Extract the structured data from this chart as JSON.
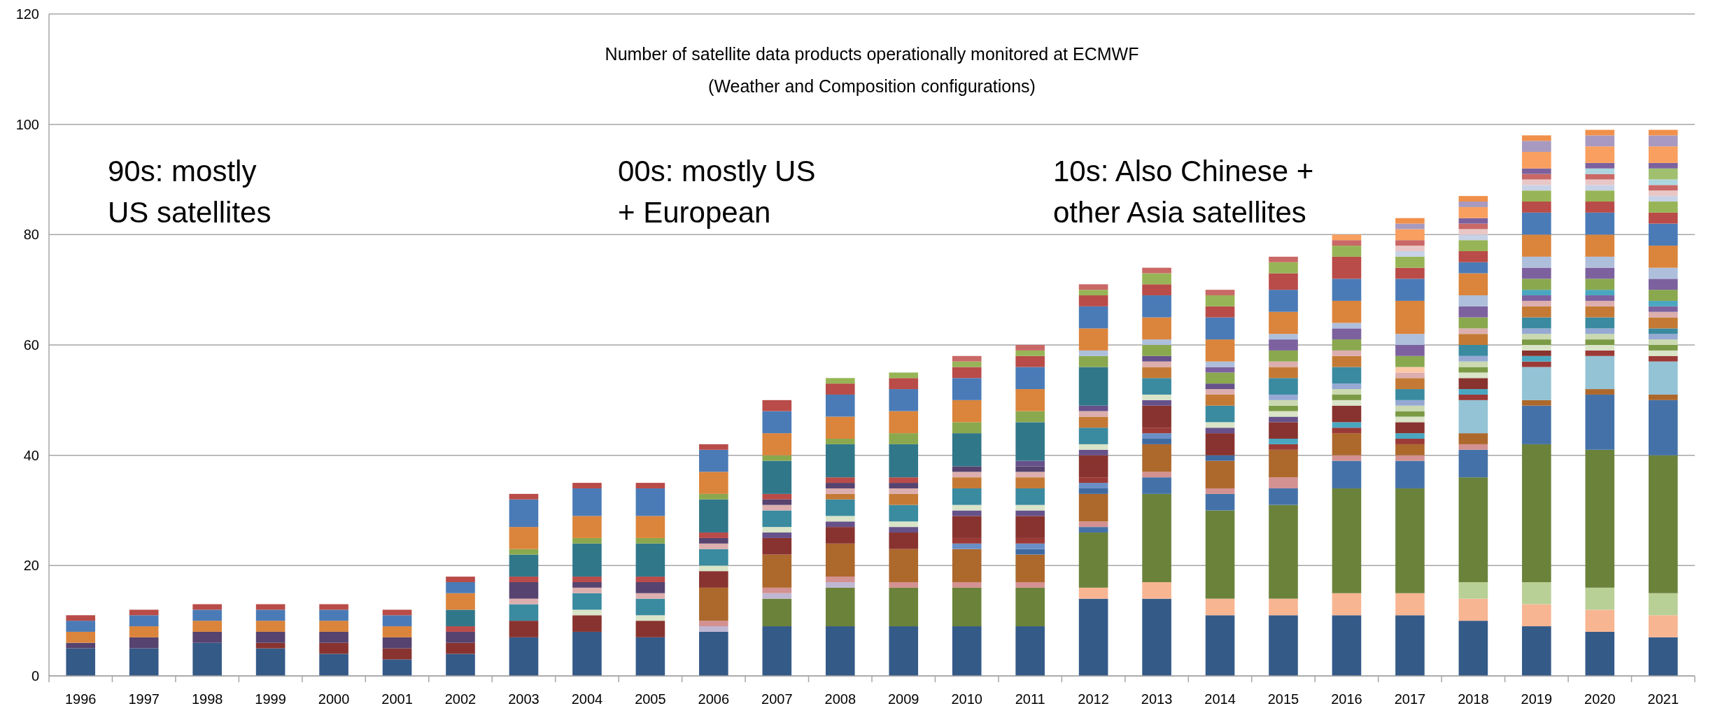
{
  "chart_data": {
    "type": "bar",
    "stacked": true,
    "title": "Number of satellite data products operationally monitored at ECMWF",
    "subtitle": "(Weather and Composition configurations)",
    "annotations": [
      "90s: mostly\nUS satellites",
      "00s: mostly US\n+ European",
      "10s: Also Chinese +\nother Asia satellites"
    ],
    "categories": [
      "1996",
      "1997",
      "1998",
      "1999",
      "2000",
      "2001",
      "2002",
      "2003",
      "2004",
      "2005",
      "2006",
      "2007",
      "2008",
      "2009",
      "2010",
      "2011",
      "2012",
      "2013",
      "2014",
      "2015",
      "2016",
      "2017",
      "2018",
      "2019",
      "2020",
      "2021"
    ],
    "ylim": [
      0,
      120
    ],
    "yticks": [
      0,
      20,
      40,
      60,
      80,
      100,
      120
    ],
    "grid": "y",
    "series": [
      {
        "values": [
          5,
          5,
          6,
          5,
          4,
          3,
          4,
          7,
          8,
          7,
          8,
          9,
          9,
          9,
          9,
          9,
          14,
          14,
          11,
          11,
          11,
          11,
          10,
          9,
          8,
          7
        ],
        "colors": [
          "#345a88",
          "#345a88",
          "#345a88",
          "#345a88",
          "#345a88",
          "#345a88",
          "#345a88",
          "#345a88",
          "#345a88",
          "#345a88",
          "#345a88",
          "#345a88",
          "#345a88",
          "#345a88",
          "#345a88",
          "#345a88",
          "#345a88",
          "#345a88",
          "#345a88",
          "#345a88",
          "#345a88",
          "#345a88",
          "#345a88",
          "#345a88",
          "#345a88",
          "#345a88"
        ]
      },
      {
        "values": [
          1,
          2,
          2,
          1,
          2,
          2,
          2,
          3,
          3,
          3,
          1,
          5,
          7,
          7,
          7,
          7,
          2,
          3,
          3,
          3,
          4,
          4,
          4,
          4,
          4,
          4
        ],
        "colors": [
          "#56436f",
          "#56436f",
          "#56436f",
          "#88332f",
          "#88332f",
          "#88332f",
          "#88332f",
          "#88332f",
          "#88332f",
          "#88332f",
          "#bfb6d2",
          "#6b823b",
          "#6b823b",
          "#6b823b",
          "#6b823b",
          "#6b823b",
          "#f8b592",
          "#f8b592",
          "#f8b592",
          "#f8b592",
          "#f8b592",
          "#f8b592",
          "#f8b592",
          "#f8b592",
          "#f8b592",
          "#f8b592"
        ]
      },
      {
        "values": [
          2,
          2,
          2,
          2,
          2,
          2,
          2,
          3,
          1,
          1,
          1,
          1,
          1,
          1,
          1,
          1,
          10,
          16,
          16,
          17,
          19,
          19,
          3,
          4,
          4,
          4
        ],
        "colors": [
          "#db843b",
          "#db843b",
          "#db843b",
          "#56436f",
          "#56436f",
          "#56436f",
          "#56436f",
          "#3a8aa0",
          "#d9e4c8",
          "#d9e4c8",
          "#d39191",
          "#bfb6d2",
          "#bfb6d2",
          "#d39191",
          "#d39191",
          "#d39191",
          "#6b823b",
          "#6b823b",
          "#6b823b",
          "#6b823b",
          "#6b823b",
          "#6b823b",
          "#b8cf96",
          "#b8cf96",
          "#b8cf96",
          "#b8cf96"
        ]
      },
      {
        "values": [
          2,
          2,
          2,
          2,
          2,
          2,
          1,
          1,
          3,
          3,
          6,
          1,
          1,
          6,
          6,
          5,
          1,
          3,
          3,
          3,
          5,
          5,
          19,
          25,
          25,
          25
        ],
        "colors": [
          "#4a7bb7",
          "#4a7bb7",
          "#4a7bb7",
          "#db843b",
          "#db843b",
          "#db843b",
          "#b94b48",
          "#dcaeae",
          "#3a8aa0",
          "#3a8aa0",
          "#ad682c",
          "#d39191",
          "#d39191",
          "#ad682c",
          "#ad682c",
          "#ad682c",
          "#4472a8",
          "#4472a8",
          "#4472a8",
          "#4472a8",
          "#4472a8",
          "#4472a8",
          "#6b823b",
          "#6b823b",
          "#6b823b",
          "#6b823b"
        ]
      },
      {
        "values": [
          1,
          1,
          1,
          2,
          2,
          2,
          3,
          3,
          1,
          1,
          3,
          6,
          6,
          3,
          1,
          1,
          1,
          1,
          1,
          2,
          1,
          1,
          5,
          7,
          10,
          10
        ],
        "colors": [
          "#b94b48",
          "#b94b48",
          "#b94b48",
          "#4a7bb7",
          "#4a7bb7",
          "#4a7bb7",
          "#31778a",
          "#56436f",
          "#dcaeae",
          "#dcaeae",
          "#88332f",
          "#ad682c",
          "#ad682c",
          "#88332f",
          "#6a8fc7",
          "#3f6aa0",
          "#d39191",
          "#d39191",
          "#d39191",
          "#d39191",
          "#d39191",
          "#d39191",
          "#4472a8",
          "#4472a8",
          "#4472a8",
          "#4472a8"
        ]
      },
      {
        "values": [
          null,
          null,
          null,
          1,
          1,
          1,
          3,
          1,
          1,
          2,
          1,
          3,
          3,
          1,
          1,
          1,
          5,
          5,
          5,
          5,
          4,
          2,
          1,
          1,
          1,
          1
        ],
        "colors": [
          null,
          null,
          null,
          "#b94b48",
          "#b94b48",
          "#b94b48",
          "#db843b",
          "#b94b48",
          "#56436f",
          "#56436f",
          "#d9e4c8",
          "#88332f",
          "#88332f",
          "#66518a",
          "#9b3a37",
          "#6a8fc7",
          "#ad682c",
          "#ad682c",
          "#ad682c",
          "#ad682c",
          "#ad682c",
          "#ad682c",
          "#d39191",
          "#ad682c",
          "#ad682c",
          "#ad682c"
        ]
      },
      {
        "values": [
          null,
          null,
          null,
          null,
          null,
          null,
          2,
          4,
          1,
          1,
          3,
          1,
          1,
          1,
          4,
          1,
          1,
          1,
          1,
          1,
          1,
          1,
          2,
          6,
          6,
          6
        ],
        "colors": [
          null,
          null,
          null,
          null,
          null,
          null,
          "#4a7bb7",
          "#31778a",
          "#b94b48",
          "#b94b48",
          "#3a8aa0",
          "#66518a",
          "#66518a",
          "#d9e4c8",
          "#88332f",
          "#9b3a37",
          "#3f6aa0",
          "#3f6aa0",
          "#3f6aa0",
          "#9b3a37",
          "#9b3a37",
          "#9b3a37",
          "#ad682c",
          "#93c3d5",
          "#93c3d5",
          "#93c3d5"
        ]
      },
      {
        "values": [
          null,
          null,
          null,
          null,
          null,
          null,
          1,
          1,
          6,
          6,
          1,
          1,
          1,
          3,
          1,
          4,
          1,
          1,
          4,
          1,
          1,
          1,
          6,
          1,
          1,
          1
        ],
        "colors": [
          null,
          null,
          null,
          null,
          null,
          null,
          "#b94b48",
          "#8aa84e",
          "#31778a",
          "#31778a",
          "#dcaeae",
          "#d9e4c8",
          "#d9e4c8",
          "#3a8aa0",
          "#66518a",
          "#88332f",
          "#6a8fc7",
          "#6a8fc7",
          "#88332f",
          "#4aa7c0",
          "#4aa7c0",
          "#4aa7c0",
          "#93c3d5",
          "#9b3a37",
          "#9b3a37",
          "#9b3a37"
        ]
      },
      {
        "values": [
          null,
          null,
          null,
          null,
          null,
          null,
          null,
          4,
          1,
          1,
          1,
          3,
          3,
          2,
          1,
          1,
          1,
          1,
          1,
          3,
          3,
          2,
          1,
          1,
          1,
          1
        ],
        "colors": [
          null,
          null,
          null,
          null,
          null,
          null,
          null,
          "#db843b",
          "#8aa84e",
          "#8aa84e",
          "#56436f",
          "#3a8aa0",
          "#3a8aa0",
          "#c47a35",
          "#d9e4c8",
          "#66518a",
          "#9b3a37",
          "#9b3a37",
          "#66518a",
          "#88332f",
          "#88332f",
          "#88332f",
          "#9b3a37",
          "#4aa7c0",
          "#d9e4c8",
          "#d9e4c8"
        ]
      },
      {
        "values": [
          null,
          null,
          null,
          null,
          null,
          null,
          null,
          5,
          4,
          4,
          1,
          1,
          1,
          1,
          3,
          1,
          4,
          4,
          1,
          1,
          1,
          1,
          1,
          1,
          1,
          1
        ],
        "colors": [
          null,
          null,
          null,
          null,
          null,
          null,
          null,
          "#4a7bb7",
          "#db843b",
          "#db843b",
          "#b94b48",
          "#dcaeae",
          "#c47a35",
          "#dcaeae",
          "#3a8aa0",
          "#d9e4c8",
          "#88332f",
          "#88332f",
          "#d9e4c8",
          "#66518a",
          "#d9e4c8",
          "#d9e4c8",
          "#4aa7c0",
          "#88332f",
          "#7b9a45",
          "#7b9a45"
        ]
      },
      {
        "values": [
          null,
          null,
          null,
          null,
          null,
          null,
          null,
          1,
          5,
          5,
          6,
          1,
          1,
          1,
          2,
          3,
          1,
          1,
          3,
          1,
          1,
          1,
          2,
          1,
          1,
          1
        ],
        "colors": [
          null,
          null,
          null,
          null,
          null,
          null,
          null,
          "#b94b48",
          "#4a7bb7",
          "#4a7bb7",
          "#31778a",
          "#56436f",
          "#dcaeae",
          "#56436f",
          "#c47a35",
          "#3a8aa0",
          "#66518a",
          "#66518a",
          "#3a8aa0",
          "#d9e4c8",
          "#7b9a45",
          "#7b9a45",
          "#88332f",
          "#d9e4c8",
          "#cad9b0",
          "#cad9b0"
        ]
      },
      {
        "values": [
          null,
          null,
          null,
          null,
          null,
          null,
          null,
          null,
          1,
          1,
          1,
          1,
          1,
          1,
          1,
          2,
          1,
          1,
          2,
          1,
          1,
          1,
          1,
          1,
          1,
          1
        ],
        "colors": [
          null,
          null,
          null,
          null,
          null,
          null,
          null,
          null,
          "#b94b48",
          "#b94b48",
          "#8aa84e",
          "#b94b48",
          "#56436f",
          "#b94b48",
          "#dcaeae",
          "#c47a35",
          "#d9e4c8",
          "#d9e4c8",
          "#c47a35",
          "#7b9a45",
          "#cad9b0",
          "#cad9b0",
          "#d9e4c8",
          "#7b9a45",
          "#95a9d3",
          "#95a9d3"
        ]
      },
      {
        "values": [
          null,
          null,
          null,
          null,
          null,
          null,
          null,
          null,
          null,
          null,
          4,
          6,
          1,
          6,
          1,
          1,
          3,
          3,
          1,
          1,
          1,
          1,
          1,
          1,
          2,
          1
        ],
        "colors": [
          null,
          null,
          null,
          null,
          null,
          null,
          null,
          null,
          null,
          null,
          "#db843b",
          "#31778a",
          "#b94b48",
          "#31778a",
          "#56436f",
          "#dcaeae",
          "#3a8aa0",
          "#3a8aa0",
          "#dcaeae",
          "#cad9b0",
          "#95a9d3",
          "#95a9d3",
          "#7b9a45",
          "#cad9b0",
          "#3a8aa0",
          "#3a8aa0"
        ]
      },
      {
        "values": [
          null,
          null,
          null,
          null,
          null,
          null,
          null,
          null,
          null,
          null,
          4,
          1,
          6,
          2,
          6,
          1,
          2,
          2,
          1,
          1,
          3,
          2,
          1,
          1,
          2,
          2
        ],
        "colors": [
          null,
          null,
          null,
          null,
          null,
          null,
          null,
          null,
          null,
          null,
          "#4a7bb7",
          "#8aa84e",
          "#31778a",
          "#8aa84e",
          "#31778a",
          "#56436f",
          "#c47a35",
          "#c47a35",
          "#66518a",
          "#95a9d3",
          "#3a8aa0",
          "#3a8aa0",
          "#cad9b0",
          "#95a9d3",
          "#c47a35",
          "#c47a35"
        ]
      },
      {
        "values": [
          null,
          null,
          null,
          null,
          null,
          null,
          null,
          null,
          null,
          null,
          1,
          4,
          1,
          4,
          2,
          1,
          1,
          1,
          2,
          3,
          2,
          2,
          1,
          2,
          1,
          1
        ],
        "colors": [
          null,
          null,
          null,
          null,
          null,
          null,
          null,
          null,
          null,
          null,
          "#b94b48",
          "#db843b",
          "#8aa84e",
          "#db843b",
          "#8aa84e",
          "#66518a",
          "#dcaeae",
          "#dcaeae",
          "#8aa84e",
          "#3a8aa0",
          "#c47a35",
          "#c47a35",
          "#95a9d3",
          "#3a8aa0",
          "#dcaeae",
          "#dcaeae"
        ]
      },
      {
        "values": [
          null,
          null,
          null,
          null,
          null,
          null,
          null,
          null,
          null,
          null,
          null,
          4,
          4,
          4,
          4,
          7,
          1,
          1,
          1,
          2,
          1,
          1,
          2,
          2,
          1,
          1
        ],
        "colors": [
          null,
          null,
          null,
          null,
          null,
          null,
          null,
          null,
          null,
          null,
          null,
          "#4a7bb7",
          "#db843b",
          "#4a7bb7",
          "#db843b",
          "#31778a",
          "#66518a",
          "#66518a",
          "#7c619e",
          "#c47a35",
          "#dcaeae",
          "#dcaeae",
          "#3a8aa0",
          "#c47a35",
          "#7c619e",
          "#7c619e"
        ]
      },
      {
        "values": [
          null,
          null,
          null,
          null,
          null,
          null,
          null,
          null,
          null,
          null,
          null,
          2,
          4,
          2,
          4,
          2,
          7,
          2,
          1,
          1,
          2,
          1,
          2,
          1,
          1,
          1
        ],
        "colors": [
          null,
          null,
          null,
          null,
          null,
          null,
          null,
          null,
          null,
          null,
          null,
          "#b94b48",
          "#4a7bb7",
          "#b94b48",
          "#4a7bb7",
          "#8aa84e",
          "#31778a",
          "#8aa84e",
          "#aebfdc",
          "#dcaeae",
          "#8aa84e",
          "#fcc8a8",
          "#c47a35",
          "#dcaeae",
          "#4aa7c0",
          "#4aa7c0"
        ]
      },
      {
        "values": [
          null,
          null,
          null,
          null,
          null,
          null,
          null,
          null,
          null,
          null,
          null,
          null,
          2,
          1,
          2,
          4,
          2,
          1,
          4,
          2,
          2,
          2,
          1,
          1,
          2,
          2
        ],
        "colors": [
          null,
          null,
          null,
          null,
          null,
          null,
          null,
          null,
          null,
          null,
          null,
          null,
          "#b94b48",
          "#97b556",
          "#b94b48",
          "#db843b",
          "#8aa84e",
          "#aebfdc",
          "#db843b",
          "#8aa84e",
          "#7c619e",
          "#8aa84e",
          "#dcaeae",
          "#7c619e",
          "#8aa84e",
          "#8aa84e"
        ]
      },
      {
        "values": [
          null,
          null,
          null,
          null,
          null,
          null,
          null,
          null,
          null,
          null,
          null,
          null,
          1,
          null,
          1,
          4,
          1,
          4,
          4,
          2,
          1,
          2,
          2,
          1,
          2,
          2
        ],
        "colors": [
          null,
          null,
          null,
          null,
          null,
          null,
          null,
          null,
          null,
          null,
          null,
          null,
          "#97b556",
          null,
          "#97b556",
          "#4a7bb7",
          "#aebfdc",
          "#db843b",
          "#4a7bb7",
          "#7c619e",
          "#aebfdc",
          "#7c619e",
          "#8aa84e",
          "#4aa7c0",
          "#7c619e",
          "#7c619e"
        ]
      },
      {
        "values": [
          null,
          null,
          null,
          null,
          null,
          null,
          null,
          null,
          null,
          null,
          null,
          null,
          null,
          null,
          1,
          2,
          4,
          4,
          2,
          1,
          4,
          2,
          2,
          2,
          2,
          2
        ],
        "colors": [
          null,
          null,
          null,
          null,
          null,
          null,
          null,
          null,
          null,
          null,
          null,
          null,
          null,
          null,
          "#c96866",
          "#b94b48",
          "#db843b",
          "#4a7bb7",
          "#b94b48",
          "#aebfdc",
          "#db843b",
          "#aebfdc",
          "#7c619e",
          "#8aa84e",
          "#aebfdc",
          "#aebfdc"
        ]
      },
      {
        "values": [
          null,
          null,
          null,
          null,
          null,
          null,
          null,
          null,
          null,
          null,
          null,
          null,
          null,
          null,
          null,
          1,
          4,
          2,
          2,
          4,
          4,
          6,
          2,
          2,
          4,
          4
        ],
        "colors": [
          null,
          null,
          null,
          null,
          null,
          null,
          null,
          null,
          null,
          null,
          null,
          null,
          null,
          null,
          null,
          "#97b556",
          "#4a7bb7",
          "#b94b48",
          "#97b556",
          "#db843b",
          "#4a7bb7",
          "#db843b",
          "#aebfdc",
          "#7c619e",
          "#db843b",
          "#db843b"
        ]
      },
      {
        "values": [
          null,
          null,
          null,
          null,
          null,
          null,
          null,
          null,
          null,
          null,
          null,
          null,
          null,
          null,
          null,
          1,
          2,
          2,
          1,
          4,
          4,
          4,
          4,
          2,
          4,
          4
        ],
        "colors": [
          null,
          null,
          null,
          null,
          null,
          null,
          null,
          null,
          null,
          null,
          null,
          null,
          null,
          null,
          null,
          "#c96866",
          "#b94b48",
          "#97b556",
          "#c96866",
          "#4a7bb7",
          "#b94b48",
          "#4a7bb7",
          "#db843b",
          "#aebfdc",
          "#4a7bb7",
          "#4a7bb7"
        ]
      },
      {
        "values": [
          null,
          null,
          null,
          null,
          null,
          null,
          null,
          null,
          null,
          null,
          null,
          null,
          null,
          null,
          null,
          null,
          1,
          1,
          null,
          3,
          2,
          2,
          2,
          4,
          2,
          2
        ],
        "colors": [
          null,
          null,
          null,
          null,
          null,
          null,
          null,
          null,
          null,
          null,
          null,
          null,
          null,
          null,
          null,
          null,
          "#97b556",
          "#c96866",
          null,
          "#b94b48",
          "#97b556",
          "#b94b48",
          "#4a7bb7",
          "#db843b",
          "#b94b48",
          "#b94b48"
        ]
      },
      {
        "values": [
          null,
          null,
          null,
          null,
          null,
          null,
          null,
          null,
          null,
          null,
          null,
          null,
          null,
          null,
          null,
          null,
          1,
          null,
          null,
          2,
          1,
          2,
          2,
          4,
          2,
          2
        ],
        "colors": [
          null,
          null,
          null,
          null,
          null,
          null,
          null,
          null,
          null,
          null,
          null,
          null,
          null,
          null,
          null,
          null,
          "#c96866",
          null,
          null,
          "#97b556",
          "#c96866",
          "#97b556",
          "#b94b48",
          "#4a7bb7",
          "#97b556",
          "#97b556"
        ]
      },
      {
        "values": [
          null,
          null,
          null,
          null,
          null,
          null,
          null,
          null,
          null,
          null,
          null,
          null,
          null,
          null,
          null,
          null,
          null,
          null,
          null,
          1,
          1,
          1,
          2,
          2,
          1,
          1
        ],
        "colors": [
          null,
          null,
          null,
          null,
          null,
          null,
          null,
          null,
          null,
          null,
          null,
          null,
          null,
          null,
          null,
          null,
          null,
          null,
          null,
          "#c96866",
          "#f99f5f",
          "#c7d2e6",
          "#97b556",
          "#b94b48",
          "#c7d2e6",
          "#c7d2e6"
        ]
      },
      {
        "values": [
          null,
          null,
          null,
          null,
          null,
          null,
          null,
          null,
          null,
          null,
          null,
          null,
          null,
          null,
          null,
          null,
          null,
          null,
          null,
          null,
          null,
          1,
          1,
          2,
          1,
          1
        ],
        "colors": [
          null,
          null,
          null,
          null,
          null,
          null,
          null,
          null,
          null,
          null,
          null,
          null,
          null,
          null,
          null,
          null,
          null,
          null,
          null,
          null,
          null,
          "#e9c7c7",
          "#c7d2e6",
          "#97b556",
          "#e9c7c7",
          "#e9c7c7"
        ]
      },
      {
        "values": [
          null,
          null,
          null,
          null,
          null,
          null,
          null,
          null,
          null,
          null,
          null,
          null,
          null,
          null,
          null,
          null,
          null,
          null,
          null,
          null,
          null,
          1,
          1,
          1,
          1,
          1
        ],
        "colors": [
          null,
          null,
          null,
          null,
          null,
          null,
          null,
          null,
          null,
          null,
          null,
          null,
          null,
          null,
          null,
          null,
          null,
          null,
          null,
          null,
          null,
          "#c96866",
          "#e9c7c7",
          "#c7d2e6",
          "#c96866",
          "#c96866"
        ]
      },
      {
        "values": [
          null,
          null,
          null,
          null,
          null,
          null,
          null,
          null,
          null,
          null,
          null,
          null,
          null,
          null,
          null,
          null,
          null,
          null,
          null,
          null,
          null,
          2,
          1,
          1,
          1,
          1
        ],
        "colors": [
          null,
          null,
          null,
          null,
          null,
          null,
          null,
          null,
          null,
          null,
          null,
          null,
          null,
          null,
          null,
          null,
          null,
          null,
          null,
          null,
          null,
          "#f99f5f",
          "#c96866",
          "#e9c7c7",
          "#add7e0",
          "#add7e0"
        ]
      },
      {
        "values": [
          null,
          null,
          null,
          null,
          null,
          null,
          null,
          null,
          null,
          null,
          null,
          null,
          null,
          null,
          null,
          null,
          null,
          null,
          null,
          null,
          null,
          1,
          1,
          1,
          1,
          2
        ],
        "colors": [
          null,
          null,
          null,
          null,
          null,
          null,
          null,
          null,
          null,
          null,
          null,
          null,
          null,
          null,
          null,
          null,
          null,
          null,
          null,
          null,
          null,
          "#a899c0",
          "#7c619e",
          "#c96866",
          "#7c619e",
          "#a0c070"
        ]
      },
      {
        "values": [
          null,
          null,
          null,
          null,
          null,
          null,
          null,
          null,
          null,
          null,
          null,
          null,
          null,
          null,
          null,
          null,
          null,
          null,
          null,
          null,
          null,
          1,
          2,
          1,
          3,
          1
        ],
        "colors": [
          null,
          null,
          null,
          null,
          null,
          null,
          null,
          null,
          null,
          null,
          null,
          null,
          null,
          null,
          null,
          null,
          null,
          null,
          null,
          null,
          null,
          "#f0904a",
          "#f99f5f",
          "#7c619e",
          "#f99f5f",
          "#7c619e"
        ]
      },
      {
        "values": [
          null,
          null,
          null,
          null,
          null,
          null,
          null,
          null,
          null,
          null,
          null,
          null,
          null,
          null,
          null,
          null,
          null,
          null,
          null,
          null,
          null,
          null,
          1,
          3,
          2,
          3
        ],
        "colors": [
          null,
          null,
          null,
          null,
          null,
          null,
          null,
          null,
          null,
          null,
          null,
          null,
          null,
          null,
          null,
          null,
          null,
          null,
          null,
          null,
          null,
          null,
          "#a899c0",
          "#f99f5f",
          "#a899c0",
          "#f99f5f"
        ]
      },
      {
        "values": [
          null,
          null,
          null,
          null,
          null,
          null,
          null,
          null,
          null,
          null,
          null,
          null,
          null,
          null,
          null,
          null,
          null,
          null,
          null,
          null,
          null,
          null,
          1,
          2,
          1,
          2
        ],
        "colors": [
          null,
          null,
          null,
          null,
          null,
          null,
          null,
          null,
          null,
          null,
          null,
          null,
          null,
          null,
          null,
          null,
          null,
          null,
          null,
          null,
          null,
          null,
          "#f0904a",
          "#a899c0",
          "#f0904a",
          "#a899c0"
        ]
      },
      {
        "values": [
          null,
          null,
          null,
          null,
          null,
          null,
          null,
          null,
          null,
          null,
          null,
          null,
          null,
          null,
          null,
          null,
          null,
          null,
          null,
          null,
          null,
          null,
          null,
          1,
          null,
          1
        ],
        "colors": [
          null,
          null,
          null,
          null,
          null,
          null,
          null,
          null,
          null,
          null,
          null,
          null,
          null,
          null,
          null,
          null,
          null,
          null,
          null,
          null,
          null,
          null,
          null,
          "#f0904a",
          null,
          "#f0904a"
        ]
      }
    ]
  }
}
